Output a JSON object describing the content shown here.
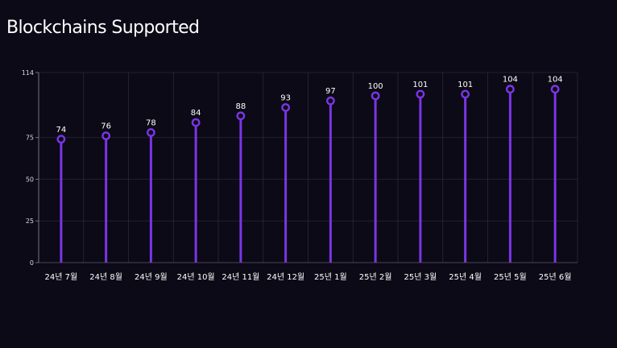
{
  "colors": {
    "background": "#0b0a16",
    "accent": "#7b35e6",
    "grid": "#2a2935",
    "text": "#ffffff"
  },
  "chart_data": {
    "type": "bar",
    "title": "Blockchains Supported",
    "xlabel": "",
    "ylabel": "",
    "categories": [
      "24년 7월",
      "24년 8월",
      "24년 9월",
      "24년 10월",
      "24년 11월",
      "24년 12월",
      "25년 1월",
      "25년 2월",
      "25년 3월",
      "25년 4월",
      "25년 5월",
      "25년 6월"
    ],
    "values": [
      74,
      76,
      78,
      84,
      88,
      93,
      97,
      100,
      101,
      101,
      104,
      104
    ],
    "ylim": [
      0,
      114
    ],
    "yticks": [
      0,
      25,
      50,
      75,
      114
    ],
    "grid": true,
    "legend": "none",
    "marker": "hollow-circle"
  }
}
